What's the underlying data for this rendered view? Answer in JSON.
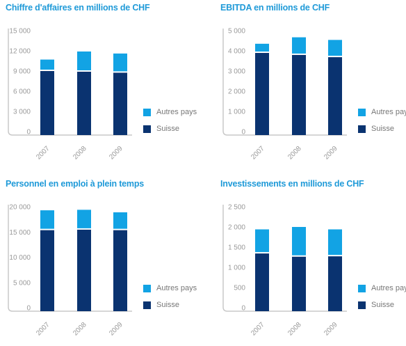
{
  "colors": {
    "suisse": "#0a3370",
    "autres": "#12a3e4",
    "title": "#1f9ad8",
    "axis": "#c8c8c8",
    "text": "#999999"
  },
  "chart_data": [
    {
      "type": "bar",
      "title": "Chiffre d'affaires en millions de CHF",
      "categories": [
        "2007",
        "2008",
        "2009"
      ],
      "series": [
        {
          "name": "Suisse",
          "values": [
            9100,
            9000,
            8850
          ]
        },
        {
          "name": "Autres pays",
          "values": [
            1600,
            2900,
            2750
          ]
        }
      ],
      "yticks": [
        "0",
        "3 000",
        "6 000",
        "9 000",
        "12 000",
        "15 000"
      ],
      "ylim": [
        0,
        15000
      ],
      "stacked": true,
      "legend": "right"
    },
    {
      "type": "bar",
      "title": "EBITDA en millions de CHF",
      "categories": [
        "2007",
        "2008",
        "2009"
      ],
      "series": [
        {
          "name": "Suisse",
          "values": [
            3930,
            3830,
            3720
          ]
        },
        {
          "name": "Autres pays",
          "values": [
            420,
            840,
            820
          ]
        }
      ],
      "yticks": [
        "0",
        "1 000",
        "2 000",
        "3 000",
        "4 000",
        "5 000"
      ],
      "ylim": [
        0,
        5000
      ],
      "stacked": true,
      "legend": "right"
    },
    {
      "type": "bar",
      "title": "Personnel en emploi à plein temps",
      "categories": [
        "2007",
        "2008",
        "2009"
      ],
      "series": [
        {
          "name": "Suisse",
          "values": [
            15500,
            15600,
            15500
          ]
        },
        {
          "name": "Autres pays",
          "values": [
            3800,
            3800,
            3400
          ]
        }
      ],
      "yticks": [
        "0",
        "5 000",
        "10 000",
        "15 000",
        "20 000"
      ],
      "ylim": [
        0,
        20000
      ],
      "stacked": true,
      "legend": "right"
    },
    {
      "type": "bar",
      "title": "Investissements en millions de CHF",
      "categories": [
        "2007",
        "2008",
        "2009"
      ],
      "series": [
        {
          "name": "Suisse",
          "values": [
            1360,
            1280,
            1290
          ]
        },
        {
          "name": "Autres pays",
          "values": [
            580,
            720,
            650
          ]
        }
      ],
      "yticks": [
        "0",
        "500",
        "1 000",
        "1 500",
        "2 000",
        "2 500"
      ],
      "ylim": [
        0,
        2500
      ],
      "stacked": true,
      "legend": "right"
    }
  ]
}
